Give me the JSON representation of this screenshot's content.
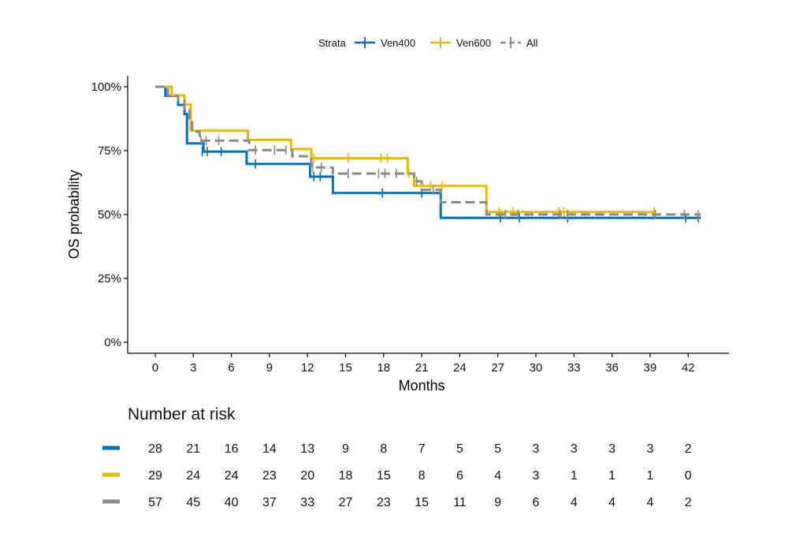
{
  "chart_data": {
    "type": "line",
    "subtype": "kaplan-meier",
    "title": "",
    "xlabel": "Months",
    "ylabel": "OS probability",
    "xlim": [
      -3,
      45
    ],
    "ylim": [
      0,
      1
    ],
    "xticks": [
      0,
      3,
      6,
      9,
      12,
      15,
      18,
      21,
      24,
      27,
      30,
      33,
      36,
      39,
      42
    ],
    "yticks": [
      0,
      0.25,
      0.5,
      0.75,
      1.0
    ],
    "ytick_labels": [
      "0%",
      "25%",
      "50%",
      "75%",
      "100%"
    ],
    "legend": {
      "position": "top",
      "title": "Strata",
      "entries": [
        {
          "name": "Ven400",
          "color": "#0072B5",
          "dash": false
        },
        {
          "name": "Ven600",
          "color": "#E7B800",
          "dash": false
        },
        {
          "name": "All",
          "color": "#8A8A8A",
          "dash": true
        }
      ]
    },
    "series": [
      {
        "name": "Ven400",
        "color": "#0072B5",
        "dash": false,
        "steps": [
          [
            0,
            1.0
          ],
          [
            0.8,
            0.964
          ],
          [
            1.8,
            0.929
          ],
          [
            2.3,
            0.893
          ],
          [
            2.5,
            0.778
          ],
          [
            3.8,
            0.746
          ],
          [
            7.2,
            0.698
          ],
          [
            12.2,
            0.648
          ],
          [
            14,
            0.584
          ],
          [
            22.5,
            0.487
          ],
          [
            43,
            0.487
          ]
        ],
        "censors": [
          [
            3.7,
            0.746
          ],
          [
            4.1,
            0.746
          ],
          [
            5.2,
            0.746
          ],
          [
            7.9,
            0.698
          ],
          [
            12.5,
            0.648
          ],
          [
            13.0,
            0.648
          ],
          [
            17.9,
            0.584
          ],
          [
            21.0,
            0.584
          ],
          [
            27.2,
            0.487
          ],
          [
            28.7,
            0.487
          ],
          [
            32.5,
            0.487
          ],
          [
            41.8,
            0.487
          ],
          [
            42.8,
            0.487
          ]
        ]
      },
      {
        "name": "Ven600",
        "color": "#E7B800",
        "dash": false,
        "steps": [
          [
            0,
            1.0
          ],
          [
            1.3,
            0.966
          ],
          [
            2.3,
            0.931
          ],
          [
            2.8,
            0.828
          ],
          [
            7.3,
            0.792
          ],
          [
            10.7,
            0.756
          ],
          [
            12.3,
            0.72
          ],
          [
            19.9,
            0.66
          ],
          [
            20.4,
            0.612
          ],
          [
            26.1,
            0.51
          ],
          [
            39.5,
            0.51
          ]
        ],
        "censors": [
          [
            12.5,
            0.72
          ],
          [
            15.2,
            0.72
          ],
          [
            17.8,
            0.72
          ],
          [
            18.3,
            0.72
          ],
          [
            20.0,
            0.66
          ],
          [
            21.7,
            0.612
          ],
          [
            22.6,
            0.612
          ],
          [
            27.1,
            0.51
          ],
          [
            28.2,
            0.51
          ],
          [
            31.8,
            0.51
          ],
          [
            32.2,
            0.51
          ],
          [
            39.3,
            0.51
          ]
        ]
      },
      {
        "name": "All",
        "color": "#8A8A8A",
        "dash": true,
        "steps": [
          [
            0,
            1.0
          ],
          [
            1.0,
            0.965
          ],
          [
            1.8,
            0.947
          ],
          [
            2.3,
            0.912
          ],
          [
            2.7,
            0.877
          ],
          [
            2.9,
            0.824
          ],
          [
            3.5,
            0.789
          ],
          [
            7.4,
            0.752
          ],
          [
            10.8,
            0.728
          ],
          [
            12.3,
            0.684
          ],
          [
            14,
            0.66
          ],
          [
            20.4,
            0.63
          ],
          [
            21.0,
            0.597
          ],
          [
            22.5,
            0.548
          ],
          [
            26.1,
            0.5
          ],
          [
            43,
            0.5
          ]
        ],
        "censors": [
          [
            3.6,
            0.789
          ],
          [
            4.0,
            0.789
          ],
          [
            5.0,
            0.789
          ],
          [
            7.9,
            0.752
          ],
          [
            9.4,
            0.752
          ],
          [
            10.3,
            0.752
          ],
          [
            12.4,
            0.684
          ],
          [
            13.1,
            0.684
          ],
          [
            15.2,
            0.66
          ],
          [
            17.6,
            0.66
          ],
          [
            18.1,
            0.66
          ],
          [
            19.0,
            0.66
          ],
          [
            20.6,
            0.63
          ],
          [
            21.9,
            0.597
          ],
          [
            27.6,
            0.5
          ],
          [
            28.6,
            0.5
          ],
          [
            31.9,
            0.5
          ],
          [
            32.5,
            0.5
          ],
          [
            39.4,
            0.5
          ],
          [
            41.7,
            0.5
          ],
          [
            42.8,
            0.5
          ]
        ]
      }
    ],
    "risk_table": {
      "title": "Number at risk",
      "times": [
        0,
        3,
        6,
        9,
        12,
        15,
        18,
        21,
        24,
        27,
        30,
        33,
        36,
        39,
        42
      ],
      "rows": [
        {
          "strata": "Ven400",
          "color": "#0072B5",
          "values": [
            28,
            21,
            16,
            14,
            13,
            9,
            8,
            7,
            5,
            5,
            3,
            3,
            3,
            3,
            2
          ]
        },
        {
          "strata": "Ven600",
          "color": "#E7B800",
          "values": [
            29,
            24,
            24,
            23,
            20,
            18,
            15,
            8,
            6,
            4,
            3,
            1,
            1,
            1,
            0
          ]
        },
        {
          "strata": "All",
          "color": "#8A8A8A",
          "values": [
            57,
            45,
            40,
            37,
            33,
            27,
            23,
            15,
            11,
            9,
            6,
            4,
            4,
            4,
            2
          ]
        }
      ]
    }
  }
}
